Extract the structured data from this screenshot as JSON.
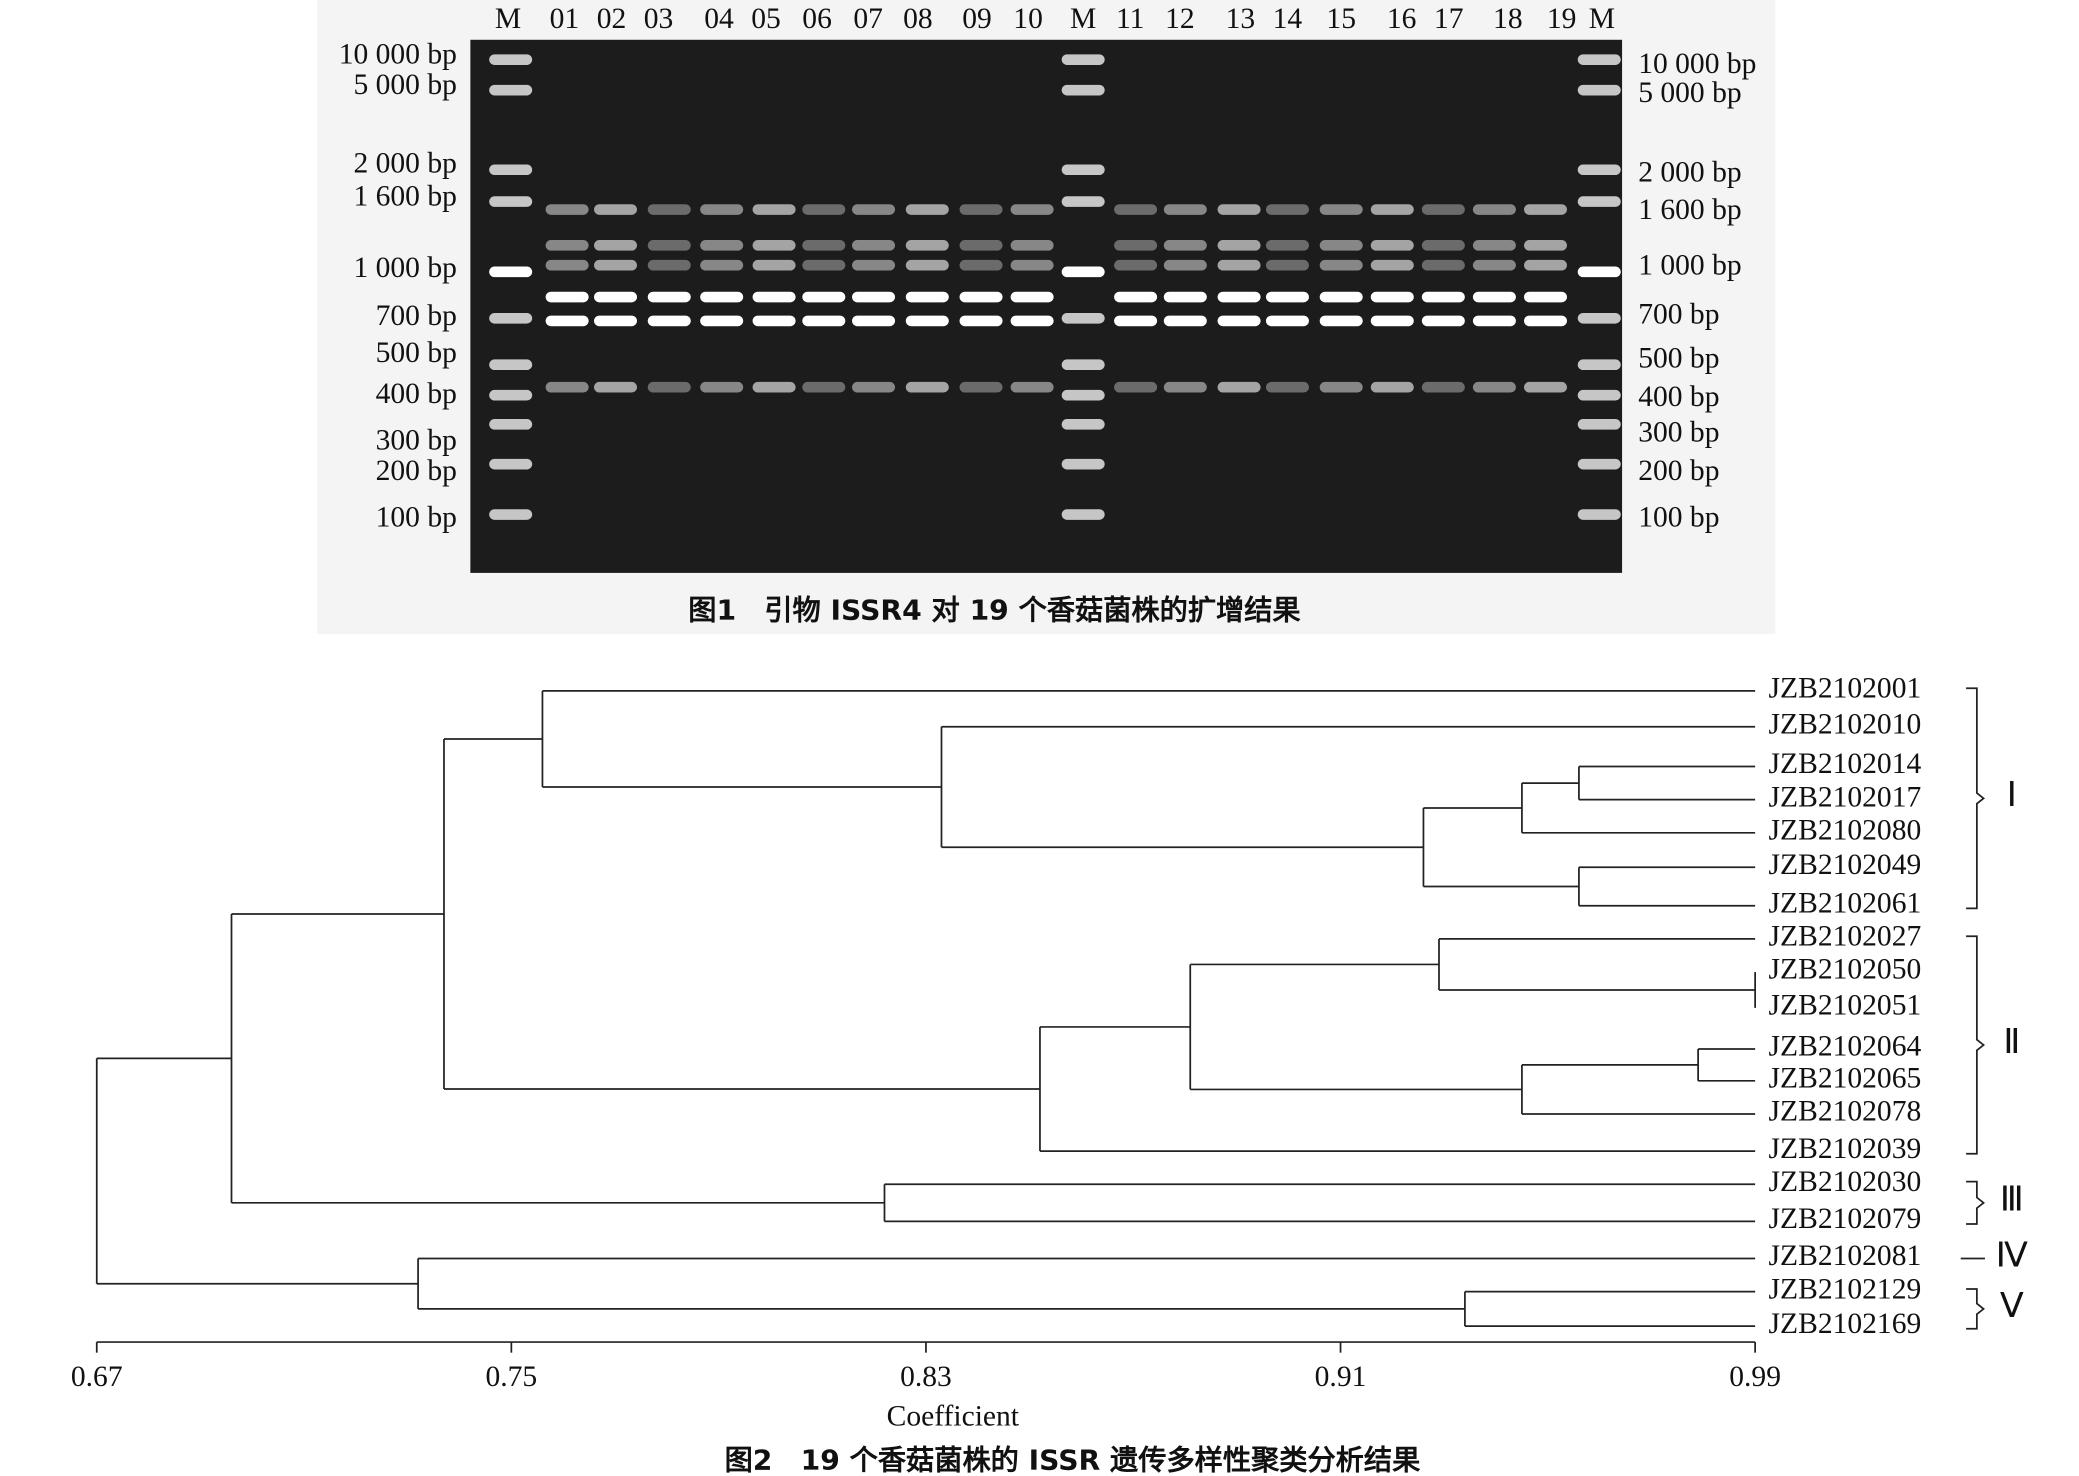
{
  "figure1": {
    "lanes": [
      "M",
      "01",
      "02",
      "03",
      "04",
      "05",
      "06",
      "07",
      "08",
      "09",
      "10",
      "M",
      "11",
      "12",
      "13",
      "14",
      "15",
      "16",
      "17",
      "18",
      "19",
      "M"
    ],
    "ladder_left": [
      "10 000 bp",
      "5 000 bp",
      "2 000 bp",
      "1 600 bp",
      "1 000 bp",
      "700 bp",
      "500 bp",
      "400 bp",
      "300 bp",
      "200 bp",
      "100 bp"
    ],
    "ladder_right": [
      "10 000 bp",
      "5 000 bp",
      "2 000 bp",
      "1 600 bp",
      "1 000 bp",
      "700 bp",
      "500 bp",
      "400 bp",
      "300 bp",
      "200 bp",
      "100 bp"
    ],
    "caption": "图1　引物 ISSR4 对 19 个香菇菌株的扩增结果"
  },
  "figure2": {
    "xlim": [
      0.67,
      0.99
    ],
    "xticks": [
      0.67,
      0.75,
      0.83,
      0.91,
      0.99
    ],
    "xlabel": "Coefficient",
    "caption": "图2　19 个香菇菌株的 ISSR 遗传多样性聚类分析结果",
    "tree": {
      "coefficient": 0.67,
      "children": [
        {
          "coefficient": 0.696,
          "children": [
            {
              "coefficient": 0.737,
              "children": [
                {
                  "coefficient": 0.756,
                  "children": [
                    {
                      "label": "JZB2102001"
                    },
                    {
                      "coefficient": 0.833,
                      "children": [
                        {
                          "label": "JZB2102010"
                        },
                        {
                          "coefficient": 0.926,
                          "children": [
                            {
                              "coefficient": 0.945,
                              "children": [
                                {
                                  "coefficient": 0.956,
                                  "children": [
                                    {
                                      "label": "JZB2102014"
                                    },
                                    {
                                      "label": "JZB2102017"
                                    }
                                  ]
                                },
                                {
                                  "label": "JZB2102080"
                                }
                              ]
                            },
                            {
                              "coefficient": 0.956,
                              "children": [
                                {
                                  "label": "JZB2102049"
                                },
                                {
                                  "label": "JZB2102061"
                                }
                              ]
                            }
                          ]
                        }
                      ]
                    }
                  ]
                },
                {
                  "coefficient": 0.852,
                  "children": [
                    {
                      "coefficient": 0.881,
                      "children": [
                        {
                          "coefficient": 0.929,
                          "children": [
                            {
                              "label": "JZB2102027"
                            },
                            {
                              "coefficient": 0.99,
                              "children": [
                                {
                                  "label": "JZB2102050"
                                },
                                {
                                  "label": "JZB2102051"
                                }
                              ]
                            }
                          ]
                        },
                        {
                          "coefficient": 0.945,
                          "children": [
                            {
                              "coefficient": 0.979,
                              "children": [
                                {
                                  "label": "JZB2102064"
                                },
                                {
                                  "label": "JZB2102065"
                                }
                              ]
                            },
                            {
                              "label": "JZB2102078"
                            }
                          ]
                        }
                      ]
                    },
                    {
                      "label": "JZB2102039"
                    }
                  ]
                }
              ]
            },
            {
              "coefficient": 0.822,
              "children": [
                {
                  "label": "JZB2102030"
                },
                {
                  "label": "JZB2102079"
                }
              ]
            }
          ]
        },
        {
          "coefficient": 0.732,
          "children": [
            {
              "label": "JZB2102081"
            },
            {
              "coefficient": 0.934,
              "children": [
                {
                  "label": "JZB2102129"
                },
                {
                  "label": "JZB2102169"
                }
              ]
            }
          ]
        }
      ]
    },
    "groups": [
      {
        "label": "Ⅰ",
        "span": [
          0,
          6
        ]
      },
      {
        "label": "Ⅱ",
        "span": [
          7,
          13
        ]
      },
      {
        "label": "Ⅲ",
        "span": [
          14,
          15
        ]
      },
      {
        "label": "Ⅳ",
        "span": [
          16,
          16
        ]
      },
      {
        "label": "Ⅴ",
        "span": [
          17,
          18
        ]
      }
    ]
  }
}
